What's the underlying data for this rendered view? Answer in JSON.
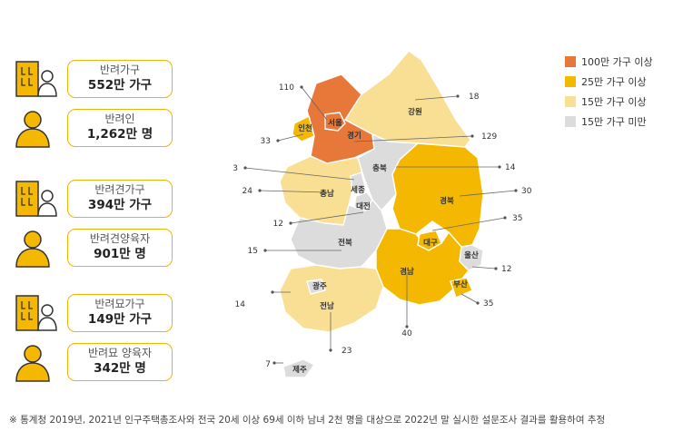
{
  "stats": [
    {
      "icon": "household-icon",
      "label": "반려가구",
      "value": "552만 가구"
    },
    {
      "icon": "person-icon",
      "label": "반려인",
      "value": "1,262만 명"
    },
    {
      "icon": "household-icon",
      "label": "반려견가구",
      "value": "394만 가구"
    },
    {
      "icon": "person-icon",
      "label": "반려견양육자",
      "value": "901만 명"
    },
    {
      "icon": "household-icon",
      "label": "반려묘가구",
      "value": "149만 가구"
    },
    {
      "icon": "person-icon",
      "label": "반려묘 양육자",
      "value": "342만 명"
    }
  ],
  "legend": [
    {
      "label": "100만 가구 이상",
      "color": "#e8773a"
    },
    {
      "label": "25만 가구 이상",
      "color": "#f5b800"
    },
    {
      "label": "15만 가구 이상",
      "color": "#f9df93"
    },
    {
      "label": "15만 가구 미만",
      "color": "#dcdcdc"
    }
  ],
  "footnote": "※ 통계청 2019년, 2021년 인구주택총조사와 전국 20세 이상 69세 이하 남녀 2천 명을 대상으로 2022년 말 실시한 설문조사 결과를 활용하여 추정",
  "chart_data": {
    "type": "choropleth-map",
    "unit": "만 가구",
    "regions": [
      {
        "name": "서울",
        "value": 110,
        "category": "100만 가구 이상"
      },
      {
        "name": "경기",
        "value": 129,
        "category": "100만 가구 이상"
      },
      {
        "name": "인천",
        "value": 33,
        "category": "25만 가구 이상"
      },
      {
        "name": "강원",
        "value": 18,
        "category": "15만 가구 이상"
      },
      {
        "name": "충북",
        "value": 14,
        "category": "15만 가구 미만"
      },
      {
        "name": "세종",
        "value": 3,
        "category": "15만 가구 미만"
      },
      {
        "name": "충남",
        "value": 24,
        "category": "15만 가구 이상"
      },
      {
        "name": "대전",
        "value": 12,
        "category": "15만 가구 미만"
      },
      {
        "name": "경북",
        "value": 30,
        "category": "25만 가구 이상"
      },
      {
        "name": "대구",
        "value": 35,
        "category": "25만 가구 이상"
      },
      {
        "name": "전북",
        "value": 15,
        "category": "15만 가구 미만"
      },
      {
        "name": "울산",
        "value": 12,
        "category": "15만 가구 미만"
      },
      {
        "name": "경남",
        "value": 40,
        "category": "25만 가구 이상"
      },
      {
        "name": "부산",
        "value": 35,
        "category": "25만 가구 이상"
      },
      {
        "name": "광주",
        "value": 14,
        "category": "15만 가구 미만"
      },
      {
        "name": "전남",
        "value": 23,
        "category": "15만 가구 이상"
      },
      {
        "name": "제주",
        "value": 7,
        "category": "15만 가구 미만"
      }
    ]
  }
}
